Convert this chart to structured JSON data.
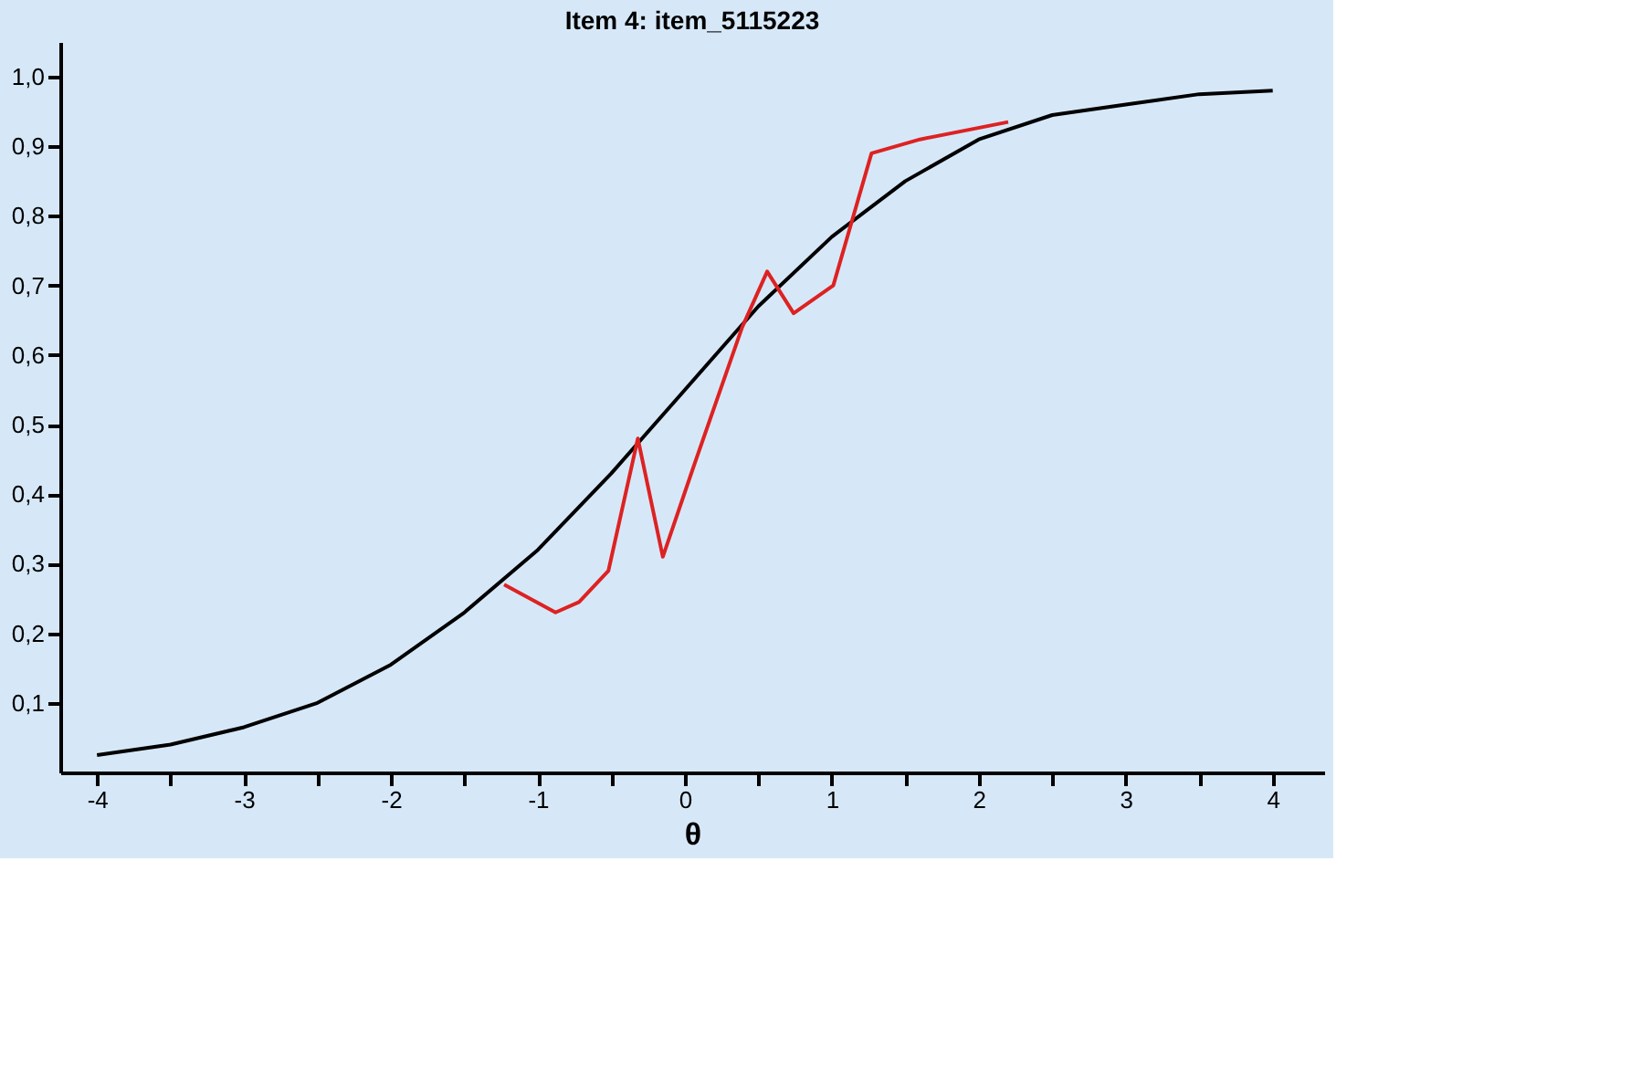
{
  "chart_data": {
    "type": "line",
    "title": "Item 4: item_5115223",
    "xlabel": "θ",
    "series": [
      {
        "color": "#000000",
        "x": [
          -4,
          -3.5,
          -3,
          -2.5,
          -2,
          -1.5,
          -1,
          -0.5,
          0,
          0.5,
          1,
          1.5,
          2,
          2.5,
          3,
          3.5,
          4
        ],
        "values": [
          0.025,
          0.04,
          0.065,
          0.1,
          0.155,
          0.23,
          0.32,
          0.43,
          0.55,
          0.67,
          0.77,
          0.85,
          0.91,
          0.945,
          0.96,
          0.975,
          0.98
        ]
      },
      {
        "color": "#dd2222",
        "x": [
          -1.23,
          -0.88,
          -0.72,
          -0.52,
          -0.32,
          -0.15,
          0.06,
          0.39,
          0.56,
          0.74,
          1.01,
          1.27,
          1.6,
          2.2
        ],
        "values": [
          0.27,
          0.23,
          0.245,
          0.29,
          0.48,
          0.31,
          0.44,
          0.64,
          0.72,
          0.66,
          0.7,
          0.89,
          0.91,
          0.935
        ]
      }
    ],
    "xlim": [
      -4.25,
      4.35
    ],
    "ylim": [
      0,
      1.05
    ],
    "xticks": [
      -4,
      {
        "value": -3.5,
        "label": null
      },
      -3,
      {
        "value": -2.5,
        "label": null
      },
      -2,
      {
        "value": -1.5,
        "label": null
      },
      -1,
      {
        "value": -0.5,
        "label": null
      },
      0,
      {
        "value": 0.5,
        "label": null
      },
      1,
      {
        "value": 1.5,
        "label": null
      },
      2,
      {
        "value": 2.5,
        "label": null
      },
      3,
      {
        "value": 3.5,
        "label": null
      },
      4
    ],
    "yticks": [
      {
        "value": 0.1,
        "label": "0,1"
      },
      {
        "value": 0.2,
        "label": "0,2"
      },
      {
        "value": 0.3,
        "label": "0,3"
      },
      {
        "value": 0.4,
        "label": "0,4"
      },
      {
        "value": 0.5,
        "label": "0,5"
      },
      {
        "value": 0.6,
        "label": "0,6"
      },
      {
        "value": 0.7,
        "label": "0,7"
      },
      {
        "value": 0.8,
        "label": "0,8"
      },
      {
        "value": 0.9,
        "label": "0,9"
      },
      {
        "value": 1.0,
        "label": "1,0"
      }
    ],
    "grid": false,
    "legend": false,
    "marker": "none",
    "line_style": "solid"
  }
}
